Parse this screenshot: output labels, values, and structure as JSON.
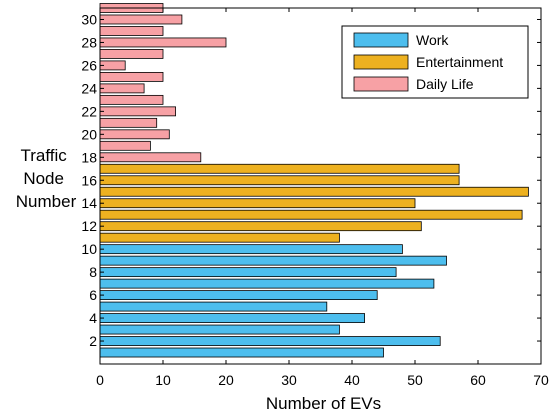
{
  "chart_data": {
    "type": "bar",
    "orientation": "horizontal",
    "title": "",
    "xlabel": "Number of EVs",
    "ylabel": [
      "Traffic",
      "Node",
      "Number"
    ],
    "xlim": [
      0,
      70
    ],
    "ylim": [
      0,
      31
    ],
    "x_ticks": [
      0,
      10,
      20,
      30,
      40,
      50,
      60,
      70
    ],
    "y_ticks": [
      2,
      4,
      6,
      8,
      10,
      12,
      14,
      16,
      18,
      20,
      22,
      24,
      26,
      28,
      30
    ],
    "grid": false,
    "legend_position": "top-right",
    "series": [
      {
        "name": "Work",
        "color": "#4DBEEE",
        "nodes": [
          1,
          2,
          3,
          4,
          5,
          6,
          7,
          8,
          9,
          10
        ],
        "values": [
          45,
          54,
          38,
          42,
          36,
          44,
          53,
          47,
          55,
          48
        ]
      },
      {
        "name": "Entertainment",
        "color": "#EDB120",
        "nodes": [
          11,
          12,
          13,
          14,
          15,
          16,
          17
        ],
        "values": [
          38,
          51,
          67,
          50,
          68,
          57,
          57
        ]
      },
      {
        "name": "Daily Life",
        "color": "#F7A1A5",
        "nodes": [
          18,
          19,
          20,
          21,
          22,
          23,
          24,
          25,
          26,
          27,
          28,
          29,
          30,
          31
        ],
        "values": [
          16,
          8,
          11,
          9,
          12,
          10,
          7,
          10,
          4,
          10,
          20,
          10,
          13,
          10
        ]
      }
    ]
  }
}
